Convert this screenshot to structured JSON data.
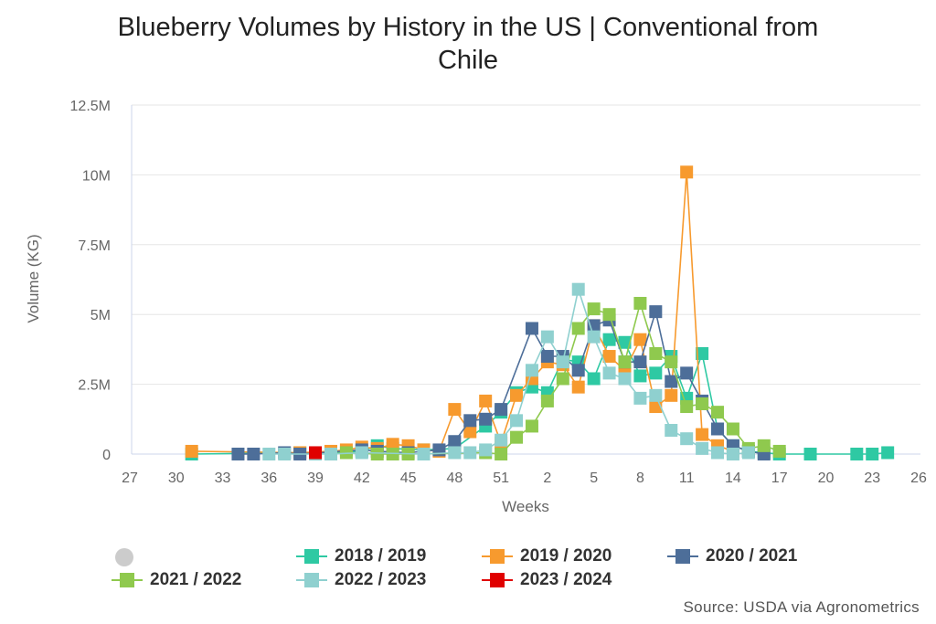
{
  "chart_data": {
    "type": "line",
    "title_lines": [
      "Blueberry Volumes by History in the US | Conventional from",
      "Chile"
    ],
    "xlabel": "Weeks",
    "ylabel": "Volume (KG)",
    "x_ticks": [
      "27",
      "30",
      "33",
      "36",
      "39",
      "42",
      "45",
      "48",
      "51",
      "2",
      "5",
      "8",
      "11",
      "14",
      "17",
      "20",
      "23",
      "26"
    ],
    "y_ticks": [
      "0",
      "2.5M",
      "5M",
      "7.5M",
      "10M",
      "12.5M"
    ],
    "ylim": [
      0,
      12500000
    ],
    "grid": "horizontal",
    "legend_position": "bottom",
    "series": [
      {
        "name": "2018 / 2019",
        "color": "#2ec9a3",
        "points": [
          [
            31,
            0
          ],
          [
            38,
            50000
          ],
          [
            40,
            50000
          ],
          [
            42,
            100000
          ],
          [
            43,
            300000
          ],
          [
            44,
            200000
          ],
          [
            46,
            150000
          ],
          [
            48,
            200000
          ],
          [
            50,
            1000000
          ],
          [
            51,
            1500000
          ],
          [
            52,
            2200000
          ],
          [
            53,
            2400000
          ],
          [
            54,
            2200000
          ],
          [
            55,
            3400000
          ],
          [
            56,
            3300000
          ],
          [
            57,
            2700000
          ],
          [
            58,
            4100000
          ],
          [
            59,
            4000000
          ],
          [
            60,
            2800000
          ],
          [
            61,
            2900000
          ],
          [
            62,
            3500000
          ],
          [
            63,
            2000000
          ],
          [
            64,
            3600000
          ],
          [
            65,
            900000
          ],
          [
            66,
            300000
          ],
          [
            67,
            100000
          ],
          [
            68,
            50000
          ],
          [
            69,
            0
          ],
          [
            71,
            0
          ],
          [
            74,
            0
          ],
          [
            75,
            0
          ],
          [
            76,
            50000
          ]
        ]
      },
      {
        "name": "2019 / 2020",
        "color": "#f79a2e",
        "points": [
          [
            31,
            100000
          ],
          [
            38,
            50000
          ],
          [
            40,
            100000
          ],
          [
            41,
            150000
          ],
          [
            42,
            250000
          ],
          [
            43,
            200000
          ],
          [
            44,
            350000
          ],
          [
            45,
            300000
          ],
          [
            46,
            150000
          ],
          [
            47,
            100000
          ],
          [
            48,
            1600000
          ],
          [
            49,
            800000
          ],
          [
            50,
            1900000
          ],
          [
            51,
            400000
          ],
          [
            52,
            2100000
          ],
          [
            53,
            2700000
          ],
          [
            54,
            3300000
          ],
          [
            55,
            3200000
          ],
          [
            56,
            2400000
          ],
          [
            57,
            4600000
          ],
          [
            58,
            3500000
          ],
          [
            59,
            3000000
          ],
          [
            60,
            4100000
          ],
          [
            61,
            1700000
          ],
          [
            62,
            2100000
          ],
          [
            63,
            10100000
          ],
          [
            64,
            700000
          ],
          [
            65,
            300000
          ],
          [
            66,
            100000
          ]
        ]
      },
      {
        "name": "2020 / 2021",
        "color": "#4d6e99",
        "points": [
          [
            34,
            0
          ],
          [
            35,
            0
          ],
          [
            37,
            50000
          ],
          [
            38,
            0
          ],
          [
            42,
            150000
          ],
          [
            43,
            100000
          ],
          [
            45,
            50000
          ],
          [
            47,
            150000
          ],
          [
            48,
            450000
          ],
          [
            49,
            1200000
          ],
          [
            50,
            1250000
          ],
          [
            51,
            1600000
          ],
          [
            53,
            4500000
          ],
          [
            54,
            3500000
          ],
          [
            55,
            3500000
          ],
          [
            56,
            3000000
          ],
          [
            57,
            4600000
          ],
          [
            58,
            4800000
          ],
          [
            59,
            3300000
          ],
          [
            60,
            3300000
          ],
          [
            61,
            5100000
          ],
          [
            62,
            2600000
          ],
          [
            63,
            2900000
          ],
          [
            64,
            1900000
          ],
          [
            65,
            900000
          ],
          [
            66,
            300000
          ],
          [
            67,
            100000
          ],
          [
            68,
            0
          ]
        ]
      },
      {
        "name": "2021 / 2022",
        "color": "#8fc94e",
        "points": [
          [
            40,
            0
          ],
          [
            41,
            50000
          ],
          [
            43,
            0
          ],
          [
            44,
            0
          ],
          [
            45,
            0
          ],
          [
            50,
            50000
          ],
          [
            51,
            0
          ],
          [
            52,
            600000
          ],
          [
            53,
            1000000
          ],
          [
            54,
            1900000
          ],
          [
            55,
            2700000
          ],
          [
            56,
            4500000
          ],
          [
            57,
            5200000
          ],
          [
            58,
            5000000
          ],
          [
            59,
            3300000
          ],
          [
            60,
            5400000
          ],
          [
            61,
            3600000
          ],
          [
            62,
            3300000
          ],
          [
            63,
            1700000
          ],
          [
            64,
            1800000
          ],
          [
            65,
            1500000
          ],
          [
            66,
            900000
          ],
          [
            67,
            200000
          ],
          [
            68,
            300000
          ],
          [
            69,
            100000
          ]
        ]
      },
      {
        "name": "2022 / 2023",
        "color": "#8fd0cf",
        "points": [
          [
            36,
            0
          ],
          [
            37,
            0
          ],
          [
            39,
            0
          ],
          [
            40,
            0
          ],
          [
            42,
            50000
          ],
          [
            46,
            0
          ],
          [
            48,
            50000
          ],
          [
            49,
            50000
          ],
          [
            50,
            150000
          ],
          [
            51,
            500000
          ],
          [
            52,
            1200000
          ],
          [
            53,
            3000000
          ],
          [
            54,
            4200000
          ],
          [
            55,
            3300000
          ],
          [
            56,
            5900000
          ],
          [
            57,
            4200000
          ],
          [
            58,
            2900000
          ],
          [
            59,
            2700000
          ],
          [
            60,
            2000000
          ],
          [
            61,
            2100000
          ],
          [
            62,
            850000
          ],
          [
            63,
            550000
          ],
          [
            64,
            200000
          ],
          [
            65,
            50000
          ],
          [
            66,
            0
          ],
          [
            67,
            50000
          ]
        ]
      },
      {
        "name": "2023 / 2024",
        "color": "#e00000",
        "points": [
          [
            39,
            50000
          ]
        ]
      }
    ],
    "x_tick_positions": [
      27,
      30,
      33,
      36,
      39,
      42,
      45,
      48,
      51,
      54,
      57,
      60,
      63,
      66,
      69,
      72,
      75,
      78
    ]
  },
  "legend": {
    "items": [
      {
        "label": "2018 / 2019",
        "color": "#2ec9a3"
      },
      {
        "label": "2019 / 2020",
        "color": "#f79a2e"
      },
      {
        "label": "2020 / 2021",
        "color": "#4d6e99"
      },
      {
        "label": "2021 / 2022",
        "color": "#8fc94e"
      },
      {
        "label": "2022 / 2023",
        "color": "#8fd0cf"
      },
      {
        "label": "2023 / 2024",
        "color": "#e00000"
      }
    ]
  },
  "source": "Source: USDA via Agronometrics"
}
